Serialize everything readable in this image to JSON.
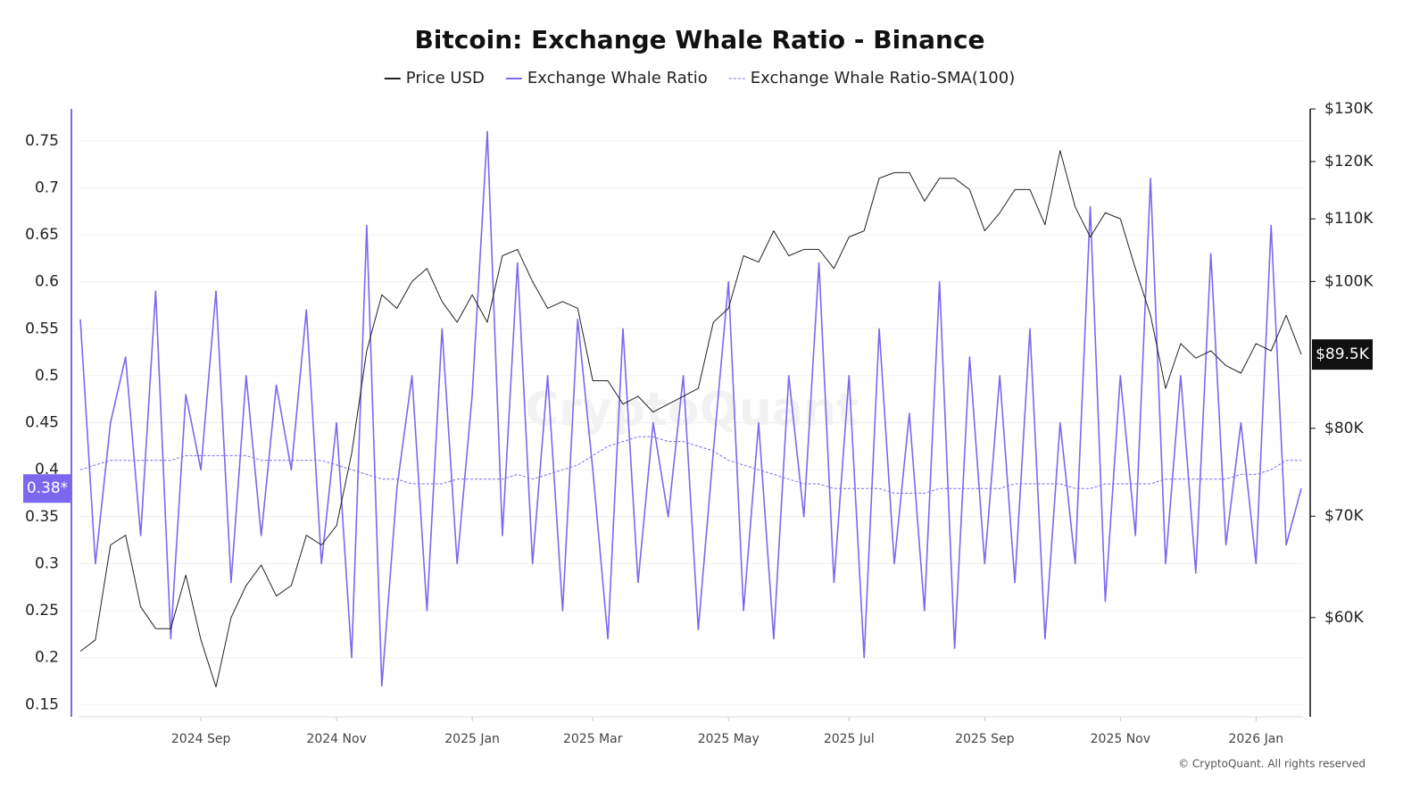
{
  "chart_data": {
    "type": "line",
    "title": "Bitcoin: Exchange Whale Ratio - Binance",
    "watermark": "CryptoQuant",
    "footer": "© CryptoQuant. All rights reserved",
    "grid": true,
    "y_log": false,
    "y2_log": true,
    "categories": [
      null,
      null,
      null,
      null,
      null,
      null,
      null,
      null,
      "2024 Sep",
      null,
      null,
      null,
      null,
      null,
      null,
      null,
      null,
      "2024 Nov",
      null,
      null,
      null,
      null,
      null,
      null,
      null,
      null,
      "2025 Jan",
      null,
      null,
      null,
      null,
      null,
      null,
      null,
      "2025 Mar",
      null,
      null,
      null,
      null,
      null,
      null,
      null,
      null,
      "2025 May",
      null,
      null,
      null,
      null,
      null,
      null,
      null,
      "2025 Jul",
      null,
      null,
      null,
      null,
      null,
      null,
      null,
      null,
      "2025 Sep",
      null,
      null,
      null,
      null,
      null,
      null,
      null,
      null,
      "2025 Nov",
      null,
      null,
      null,
      null,
      null,
      null,
      null,
      null,
      "2026 Jan",
      null,
      null,
      null
    ],
    "ylim": [
      0.137,
      0.784
    ],
    "yticks": [
      0.15,
      0.2,
      0.25,
      0.3,
      0.35,
      0.4,
      0.45,
      0.5,
      0.55,
      0.6,
      0.65,
      0.7,
      0.75
    ],
    "y2lim": [
      51600,
      130000
    ],
    "y2ticks": [
      {
        "value": 60000,
        "label": "$60K"
      },
      {
        "value": 70000,
        "label": "$70K"
      },
      {
        "value": 80000,
        "label": "$80K"
      },
      {
        "value": 100000,
        "label": "$100K"
      },
      {
        "value": 110000,
        "label": "$110K"
      },
      {
        "value": 120000,
        "label": "$120K"
      },
      {
        "value": 130000,
        "label": "$130K"
      }
    ],
    "series": [
      {
        "name": "Price USD",
        "color": "#222222",
        "axis": "y2",
        "dash": false,
        "width": 1,
        "last_label": "$89.5K",
        "values": [
          57000,
          58000,
          67000,
          68000,
          61000,
          59000,
          59000,
          64000,
          58000,
          54000,
          60000,
          63000,
          65000,
          62000,
          63000,
          68000,
          67000,
          69000,
          77000,
          90000,
          98000,
          96000,
          100000,
          102000,
          97000,
          94000,
          98000,
          94000,
          104000,
          105000,
          100000,
          96000,
          97000,
          96000,
          86000,
          86000,
          83000,
          84000,
          82000,
          83000,
          84000,
          85000,
          94000,
          96000,
          104000,
          103000,
          108000,
          104000,
          105000,
          105000,
          102000,
          107000,
          108000,
          117000,
          118000,
          118000,
          113000,
          117000,
          117000,
          115000,
          108000,
          111000,
          115000,
          115000,
          109000,
          122000,
          112000,
          107000,
          111000,
          110000,
          102000,
          95000,
          85000,
          91000,
          89000,
          90000,
          88000,
          87000,
          91000,
          90000,
          95000,
          89500
        ]
      },
      {
        "name": "Exchange Whale Ratio",
        "color": "#7b68ee",
        "axis": "y",
        "dash": false,
        "width": 1.6,
        "last_label": "0.38*",
        "values": [
          0.56,
          0.3,
          0.45,
          0.52,
          0.33,
          0.59,
          0.22,
          0.48,
          0.4,
          0.59,
          0.28,
          0.5,
          0.33,
          0.49,
          0.4,
          0.57,
          0.3,
          0.45,
          0.2,
          0.66,
          0.17,
          0.38,
          0.5,
          0.25,
          0.55,
          0.3,
          0.48,
          0.76,
          0.33,
          0.62,
          0.3,
          0.5,
          0.25,
          0.56,
          0.4,
          0.22,
          0.55,
          0.28,
          0.45,
          0.35,
          0.5,
          0.23,
          0.42,
          0.6,
          0.25,
          0.45,
          0.22,
          0.5,
          0.35,
          0.62,
          0.28,
          0.5,
          0.2,
          0.55,
          0.3,
          0.46,
          0.25,
          0.6,
          0.21,
          0.52,
          0.3,
          0.5,
          0.28,
          0.55,
          0.22,
          0.45,
          0.3,
          0.68,
          0.26,
          0.5,
          0.33,
          0.71,
          0.3,
          0.5,
          0.29,
          0.63,
          0.32,
          0.45,
          0.3,
          0.66,
          0.32,
          0.38
        ]
      },
      {
        "name": "Exchange Whale Ratio-SMA(100)",
        "color": "#7b68ee",
        "axis": "y",
        "dash": true,
        "width": 1,
        "values": [
          0.4,
          0.405,
          0.41,
          0.41,
          0.41,
          0.41,
          0.41,
          0.415,
          0.415,
          0.415,
          0.415,
          0.415,
          0.41,
          0.41,
          0.41,
          0.41,
          0.41,
          0.405,
          0.4,
          0.395,
          0.39,
          0.39,
          0.385,
          0.385,
          0.385,
          0.39,
          0.39,
          0.39,
          0.39,
          0.395,
          0.39,
          0.395,
          0.4,
          0.405,
          0.415,
          0.425,
          0.43,
          0.435,
          0.435,
          0.43,
          0.43,
          0.425,
          0.42,
          0.41,
          0.405,
          0.4,
          0.395,
          0.39,
          0.385,
          0.385,
          0.38,
          0.38,
          0.38,
          0.38,
          0.375,
          0.375,
          0.375,
          0.38,
          0.38,
          0.38,
          0.38,
          0.38,
          0.385,
          0.385,
          0.385,
          0.385,
          0.38,
          0.38,
          0.385,
          0.385,
          0.385,
          0.385,
          0.39,
          0.39,
          0.39,
          0.39,
          0.39,
          0.395,
          0.395,
          0.4,
          0.41,
          0.41
        ]
      }
    ]
  }
}
